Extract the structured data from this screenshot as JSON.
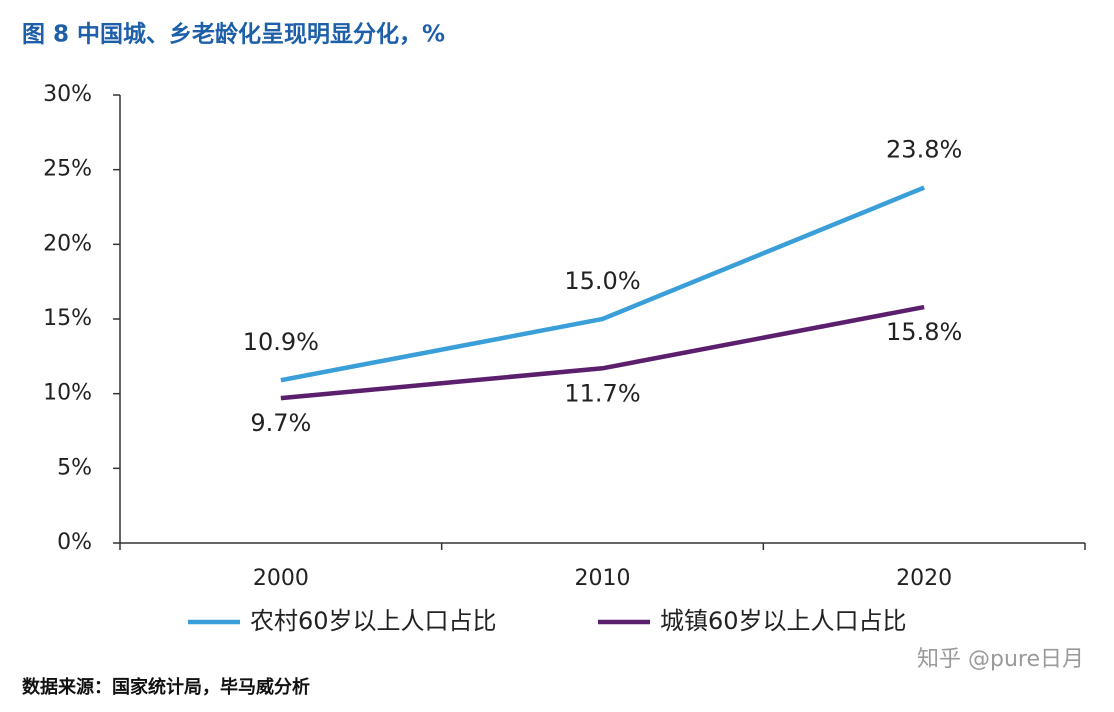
{
  "chart_data": {
    "type": "line",
    "title": "图 8  中国城、乡老龄化呈现明显分化，%",
    "categories": [
      "2000",
      "2010",
      "2020"
    ],
    "series": [
      {
        "name": "农村60岁以上人口占比",
        "color": "#3a9fd9",
        "values": [
          10.9,
          15.0,
          23.8
        ],
        "value_labels": [
          "10.9%",
          "15.0%",
          "23.8%"
        ],
        "label_position": "above"
      },
      {
        "name": "城镇60岁以上人口占比",
        "color": "#5c1f6e",
        "values": [
          9.7,
          11.7,
          15.8
        ],
        "value_labels": [
          "9.7%",
          "11.7%",
          "15.8%"
        ],
        "label_position": "below"
      }
    ],
    "ylim": [
      0,
      30
    ],
    "yticks": [
      {
        "value": 0,
        "label": "0%"
      },
      {
        "value": 5,
        "label": "5%"
      },
      {
        "value": 10,
        "label": "10%"
      },
      {
        "value": 15,
        "label": "15%"
      },
      {
        "value": 20,
        "label": "20%"
      },
      {
        "value": 25,
        "label": "25%"
      },
      {
        "value": 30,
        "label": "30%"
      }
    ],
    "legend": "bottom",
    "source": "数据来源：国家统计局，毕马威分析",
    "watermark": "知乎 @pure日月"
  }
}
